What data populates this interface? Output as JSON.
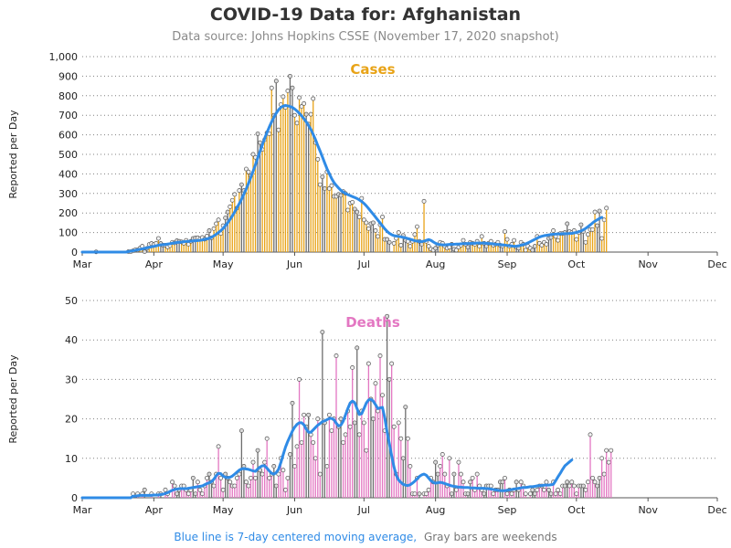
{
  "title": "COVID-19 Data for: Afghanistan",
  "subtitle": "Data source: Johns Hopkins CSSE (November 17, 2020 snapshot)",
  "footnote": {
    "blue_text": "Blue line is 7-day centered moving average,",
    "gray_text": "Gray bars are weekends"
  },
  "colors": {
    "cases": "#e8a317",
    "deaths": "#e377c2",
    "moving_average": "#2f8be6",
    "weekend": "#6e6e6e",
    "grid": "#808080"
  },
  "chart_data": [
    {
      "type": "bar",
      "title": "Cases",
      "ylabel": "Reported per Day",
      "ylim": [
        0,
        1000
      ],
      "yticks": [
        0,
        100,
        200,
        300,
        400,
        500,
        600,
        700,
        800,
        900,
        1000
      ],
      "ytick_labels": [
        "0",
        "100",
        "200",
        "300",
        "400",
        "500",
        "600",
        "700",
        "800",
        "900",
        "1,000"
      ],
      "x_tick_labels": [
        "Mar",
        "Apr",
        "May",
        "Jun",
        "Jul",
        "Aug",
        "Sep",
        "Oct",
        "Nov",
        "Dec"
      ],
      "x_tick_dates": [
        "2020-03-01",
        "2020-04-01",
        "2020-05-01",
        "2020-06-01",
        "2020-07-01",
        "2020-08-01",
        "2020-09-01",
        "2020-10-01",
        "2020-11-01",
        "2020-12-01"
      ],
      "first_date": "2020-03-01",
      "values": [
        0,
        0,
        0,
        0,
        0,
        0,
        1,
        0,
        0,
        0,
        0,
        0,
        0,
        0,
        0,
        0,
        0,
        0,
        0,
        0,
        2,
        2,
        6,
        12,
        11,
        20,
        30,
        2,
        19,
        39,
        44,
        39,
        45,
        70,
        44,
        35,
        35,
        26,
        33,
        50,
        47,
        58,
        55,
        52,
        45,
        60,
        40,
        55,
        70,
        72,
        73,
        68,
        75,
        66,
        82,
        110,
        73,
        120,
        145,
        165,
        95,
        135,
        175,
        205,
        232,
        265,
        295,
        225,
        315,
        345,
        315,
        425,
        410,
        390,
        500,
        485,
        605,
        560,
        525,
        575,
        610,
        605,
        840,
        700,
        875,
        625,
        755,
        795,
        740,
        825,
        900,
        840,
        700,
        660,
        790,
        745,
        760,
        705,
        655,
        705,
        785,
        560,
        475,
        345,
        385,
        325,
        410,
        325,
        340,
        285,
        285,
        295,
        290,
        310,
        300,
        215,
        250,
        255,
        220,
        205,
        180,
        275,
        165,
        150,
        120,
        145,
        150,
        110,
        80,
        140,
        180,
        65,
        65,
        50,
        0,
        45,
        70,
        100,
        35,
        85,
        60,
        55,
        30,
        55,
        90,
        130,
        55,
        40,
        260,
        55,
        30,
        15,
        10,
        20,
        35,
        50,
        45,
        30,
        20,
        25,
        40,
        15,
        10,
        25,
        35,
        60,
        40,
        25,
        50,
        45,
        40,
        55,
        30,
        80,
        45,
        30,
        45,
        55,
        35,
        40,
        50,
        35,
        30,
        105,
        65,
        30,
        40,
        60,
        25,
        20,
        50,
        40,
        10,
        30,
        20,
        10,
        30,
        80,
        45,
        35,
        50,
        40,
        70,
        75,
        110,
        80,
        60,
        95,
        95,
        100,
        145,
        105,
        100,
        110,
        65,
        100,
        140,
        105,
        50,
        90,
        115,
        115,
        205,
        135,
        210,
        70,
        165,
        225
      ],
      "moving_average": [
        0,
        0,
        0,
        0,
        0,
        0,
        0,
        0,
        0,
        0,
        0,
        0,
        0,
        0,
        0,
        0,
        0,
        0,
        0,
        0,
        3,
        5,
        7,
        9,
        12,
        14,
        16,
        19,
        22,
        24,
        27,
        29,
        32,
        35,
        37,
        38,
        39,
        41,
        43,
        45,
        47,
        49,
        50,
        51,
        53,
        54,
        55,
        56,
        57,
        58,
        59,
        60,
        62,
        65,
        67,
        71,
        76,
        83,
        91,
        100,
        110,
        121,
        135,
        150,
        167,
        185,
        205,
        226,
        248,
        271,
        296,
        323,
        352,
        382,
        414,
        447,
        482,
        516,
        549,
        582,
        612,
        640,
        666,
        690,
        711,
        728,
        740,
        747,
        750,
        748,
        745,
        740,
        732,
        722,
        710,
        697,
        682,
        666,
        648,
        628,
        602,
        576,
        545,
        517,
        487,
        456,
        426,
        401,
        376,
        356,
        341,
        328,
        316,
        307,
        300,
        294,
        289,
        284,
        279,
        274,
        267,
        259,
        249,
        237,
        223,
        208,
        194,
        179,
        164,
        149,
        134,
        119,
        106,
        96,
        89,
        84,
        82,
        80,
        78,
        75,
        73,
        69,
        66,
        62,
        58,
        56,
        54,
        54,
        56,
        60,
        64,
        60,
        52,
        45,
        40,
        38,
        37,
        37,
        38,
        39,
        40,
        40,
        41,
        41,
        42,
        43,
        43,
        44,
        44,
        45,
        45,
        46,
        46,
        46,
        46,
        45,
        44,
        43,
        42,
        40,
        39,
        38,
        37,
        36,
        34,
        33,
        31,
        30,
        30,
        32,
        35,
        38,
        42,
        47,
        53,
        59,
        65,
        71,
        77,
        81,
        84,
        86,
        88,
        90,
        91,
        92,
        93,
        93,
        94,
        94,
        94,
        95,
        96,
        98,
        100,
        104,
        108,
        114,
        121,
        130,
        139,
        149,
        158,
        165,
        172,
        178
      ],
      "weekend_days": [
        0,
        6,
        7,
        13,
        14,
        20,
        21,
        27,
        28,
        34,
        35,
        41,
        42,
        48,
        49,
        55,
        56,
        62,
        63,
        69,
        70,
        76,
        77,
        83,
        84,
        90,
        91,
        97,
        98,
        104,
        105,
        111,
        112,
        118,
        119,
        125,
        126,
        132,
        133,
        139,
        140,
        146,
        147,
        153,
        154,
        160,
        161,
        167,
        168,
        174,
        175,
        181,
        182,
        188,
        189,
        195,
        196,
        202,
        203,
        209,
        210,
        216,
        217,
        223,
        224,
        230,
        231,
        237,
        238,
        244,
        245,
        251,
        252,
        258,
        259
      ]
    },
    {
      "type": "bar",
      "title": "Deaths",
      "ylabel": "Reported per Day",
      "ylim": [
        0,
        50
      ],
      "yticks": [
        0,
        10,
        20,
        30,
        40,
        50
      ],
      "ytick_labels": [
        "0",
        "10",
        "20",
        "30",
        "40",
        "50"
      ],
      "x_tick_labels": [
        "Mar",
        "Apr",
        "May",
        "Jun",
        "Jul",
        "Aug",
        "Sep",
        "Oct",
        "Nov",
        "Dec"
      ],
      "x_tick_dates": [
        "2020-03-01",
        "2020-04-01",
        "2020-05-01",
        "2020-06-01",
        "2020-07-01",
        "2020-08-01",
        "2020-09-01",
        "2020-10-01",
        "2020-11-01",
        "2020-12-01"
      ],
      "first_date": "2020-03-01",
      "values": [
        0,
        0,
        0,
        0,
        0,
        0,
        0,
        0,
        0,
        0,
        0,
        0,
        0,
        0,
        0,
        0,
        0,
        0,
        0,
        0,
        0,
        0,
        1,
        0,
        1,
        0,
        1,
        2,
        0,
        0,
        1,
        0,
        0,
        1,
        1,
        0,
        2,
        1,
        0,
        4,
        3,
        1,
        2,
        3,
        3,
        2,
        1,
        2,
        5,
        1,
        4,
        2,
        1,
        3,
        5,
        6,
        4,
        3,
        6,
        13,
        5,
        2,
        6,
        5,
        4,
        3,
        3,
        5,
        6,
        17,
        8,
        4,
        3,
        5,
        9,
        5,
        12,
        7,
        6,
        9,
        15,
        5,
        6,
        8,
        3,
        6,
        10,
        7,
        2,
        5,
        11,
        24,
        8,
        13,
        30,
        14,
        21,
        18,
        21,
        16,
        14,
        10,
        20,
        6,
        42,
        19,
        8,
        21,
        17,
        20,
        36,
        18,
        20,
        14,
        16,
        22,
        18,
        33,
        19,
        38,
        16,
        22,
        19,
        12,
        34,
        25,
        20,
        29,
        22,
        36,
        26,
        17,
        46,
        30,
        34,
        18,
        6,
        19,
        15,
        10,
        23,
        15,
        8,
        1,
        1,
        5,
        1,
        0,
        1,
        1,
        2,
        5,
        4,
        9,
        6,
        8,
        11,
        6,
        3,
        10,
        1,
        6,
        2,
        9,
        6,
        4,
        1,
        1,
        4,
        5,
        2,
        6,
        3,
        2,
        1,
        3,
        3,
        3,
        1,
        2,
        2,
        4,
        4,
        5,
        1,
        2,
        1,
        2,
        4,
        2,
        4,
        3,
        1,
        0,
        1,
        2,
        1,
        2,
        3,
        3,
        2,
        4,
        2,
        1,
        4,
        1,
        2,
        1,
        3,
        3,
        4,
        3,
        4,
        3,
        1,
        3,
        3,
        3,
        2,
        4,
        16,
        5,
        4,
        3,
        5,
        10,
        6,
        12,
        9,
        12
      ],
      "moving_average": [
        0,
        0,
        0,
        0,
        0,
        0,
        0,
        0,
        0,
        0,
        0,
        0,
        0,
        0,
        0,
        0,
        0,
        0,
        0,
        0,
        0,
        0,
        0.4,
        0.4,
        0.5,
        0.6,
        0.6,
        0.6,
        0.6,
        0.6,
        0.6,
        0.7,
        0.7,
        0.7,
        0.8,
        0.9,
        1.1,
        1.3,
        1.6,
        1.9,
        2.1,
        2.2,
        2.3,
        2.3,
        2.3,
        2.3,
        2.4,
        2.5,
        2.6,
        2.7,
        2.8,
        2.9,
        3,
        3.3,
        3.6,
        3.8,
        4.1,
        4.7,
        5.6,
        6.2,
        6.1,
        5.5,
        5.2,
        5.1,
        5.2,
        5.5,
        6,
        6.5,
        7,
        7.3,
        7.4,
        7.3,
        7.2,
        7,
        6.8,
        6.7,
        7.3,
        7.8,
        8.1,
        8.1,
        7.5,
        6.8,
        6.2,
        6,
        6.4,
        7.2,
        8.9,
        10.9,
        12.8,
        14.3,
        15.6,
        16.9,
        17.9,
        18.6,
        19,
        19,
        18.5,
        17.4,
        16.6,
        16.6,
        17.2,
        17.8,
        18.4,
        18.8,
        19.3,
        19.5,
        19.8,
        20.1,
        20.1,
        19.8,
        18.9,
        18.2,
        18.4,
        19.4,
        21,
        22.6,
        24,
        24.5,
        24.1,
        22.6,
        21.1,
        21.3,
        22.6,
        24,
        24.8,
        24.9,
        24.5,
        23.6,
        22.6,
        22.8,
        22.9,
        20.3,
        16.7,
        13.7,
        10.6,
        7.8,
        5.7,
        4.5,
        3.9,
        3.4,
        3.2,
        3.1,
        3.3,
        3.7,
        4.2,
        4.8,
        5.4,
        5.8,
        6,
        5.7,
        5,
        4.3,
        3.9,
        3.7,
        3.8,
        3.9,
        3.8,
        3.6,
        3.4,
        3.2,
        3,
        2.9,
        2.8,
        2.7,
        2.7,
        2.6,
        2.6,
        2.6,
        2.5,
        2.5,
        2.5,
        2.4,
        2.4,
        2.4,
        2.4,
        2.3,
        2.3,
        2.2,
        2.1,
        2,
        1.9,
        1.8,
        1.8,
        1.8,
        1.9,
        2,
        2.1,
        2.2,
        2.3,
        2.4,
        2.5,
        2.6,
        2.6,
        2.7,
        2.8,
        2.8,
        2.9,
        3,
        3.1,
        3.1,
        3.2,
        3.2,
        3.2,
        3.3,
        3.4,
        4.3,
        5.3,
        6.2,
        7.2,
        8.1,
        8.6,
        9.1,
        9.6
      ],
      "weekend_days": [
        0,
        6,
        7,
        13,
        14,
        20,
        21,
        27,
        28,
        34,
        35,
        41,
        42,
        48,
        49,
        55,
        56,
        62,
        63,
        69,
        70,
        76,
        77,
        83,
        84,
        90,
        91,
        97,
        98,
        104,
        105,
        111,
        112,
        118,
        119,
        125,
        126,
        132,
        133,
        139,
        140,
        146,
        147,
        153,
        154,
        160,
        161,
        167,
        168,
        174,
        175,
        181,
        182,
        188,
        189,
        195,
        196,
        202,
        203,
        209,
        210,
        216,
        217,
        223,
        224,
        230,
        231,
        237,
        238,
        244,
        245,
        251,
        252,
        258,
        259
      ]
    }
  ]
}
